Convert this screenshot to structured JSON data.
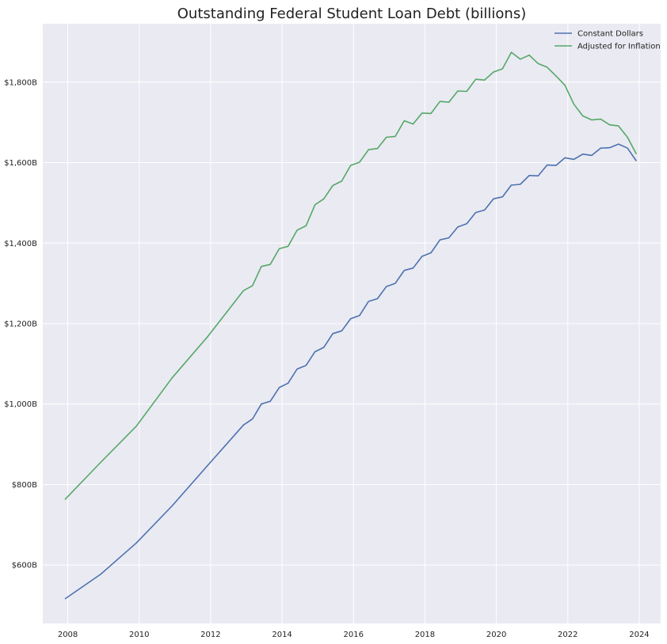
{
  "chart_data": {
    "type": "line",
    "title": "Outstanding Federal Student Loan Debt (billions)",
    "xlabel": "",
    "ylabel": "",
    "xlim": [
      2007.3,
      2024.6
    ],
    "ylim": [
      455,
      1945
    ],
    "x_ticks": [
      2008,
      2010,
      2012,
      2014,
      2016,
      2018,
      2020,
      2022,
      2024
    ],
    "x_tick_labels": [
      "2008",
      "2010",
      "2012",
      "2014",
      "2016",
      "2018",
      "2020",
      "2022",
      "2024"
    ],
    "y_ticks": [
      600,
      800,
      1000,
      1200,
      1400,
      1600,
      1800
    ],
    "y_tick_labels": [
      "$600B",
      "$800B",
      "$1,000B",
      "$1,200B",
      "$1,400B",
      "$1,600B",
      "$1,800B"
    ],
    "grid": true,
    "legend": "top-right",
    "x": [
      2007.92,
      2008.92,
      2009.92,
      2010.92,
      2011.92,
      2012.92,
      2013.17,
      2013.42,
      2013.67,
      2013.92,
      2014.17,
      2014.42,
      2014.67,
      2014.92,
      2015.17,
      2015.42,
      2015.67,
      2015.92,
      2016.17,
      2016.42,
      2016.67,
      2016.92,
      2017.17,
      2017.42,
      2017.67,
      2017.92,
      2018.17,
      2018.42,
      2018.67,
      2018.92,
      2019.17,
      2019.42,
      2019.67,
      2019.92,
      2020.17,
      2020.42,
      2020.67,
      2020.92,
      2021.17,
      2021.42,
      2021.67,
      2021.92,
      2022.17,
      2022.42,
      2022.67,
      2022.92,
      2023.17,
      2023.42,
      2023.67,
      2023.92
    ],
    "series": [
      {
        "name": "Constant Dollars",
        "color": "#4c72b0",
        "values": [
          516,
          577,
          655,
          747,
          848,
          948,
          963,
          1000,
          1007,
          1041,
          1052,
          1087,
          1096,
          1130,
          1141,
          1175,
          1182,
          1212,
          1220,
          1255,
          1262,
          1292,
          1300,
          1332,
          1338,
          1367,
          1376,
          1408,
          1413,
          1440,
          1448,
          1476,
          1482,
          1510,
          1515,
          1544,
          1546,
          1568,
          1567,
          1594,
          1593,
          1612,
          1608,
          1621,
          1618,
          1636,
          1637,
          1646,
          1636,
          1604
        ]
      },
      {
        "name": "Adjusted for Inflation",
        "color": "#55a868",
        "values": [
          763,
          855,
          945,
          1065,
          1168,
          1282,
          1294,
          1342,
          1347,
          1386,
          1392,
          1432,
          1443,
          1495,
          1510,
          1543,
          1554,
          1593,
          1601,
          1632,
          1635,
          1663,
          1665,
          1704,
          1696,
          1723,
          1722,
          1752,
          1750,
          1778,
          1777,
          1807,
          1805,
          1825,
          1833,
          1874,
          1857,
          1867,
          1846,
          1837,
          1815,
          1792,
          1745,
          1716,
          1706,
          1708,
          1694,
          1691,
          1663,
          1621
        ]
      }
    ]
  }
}
